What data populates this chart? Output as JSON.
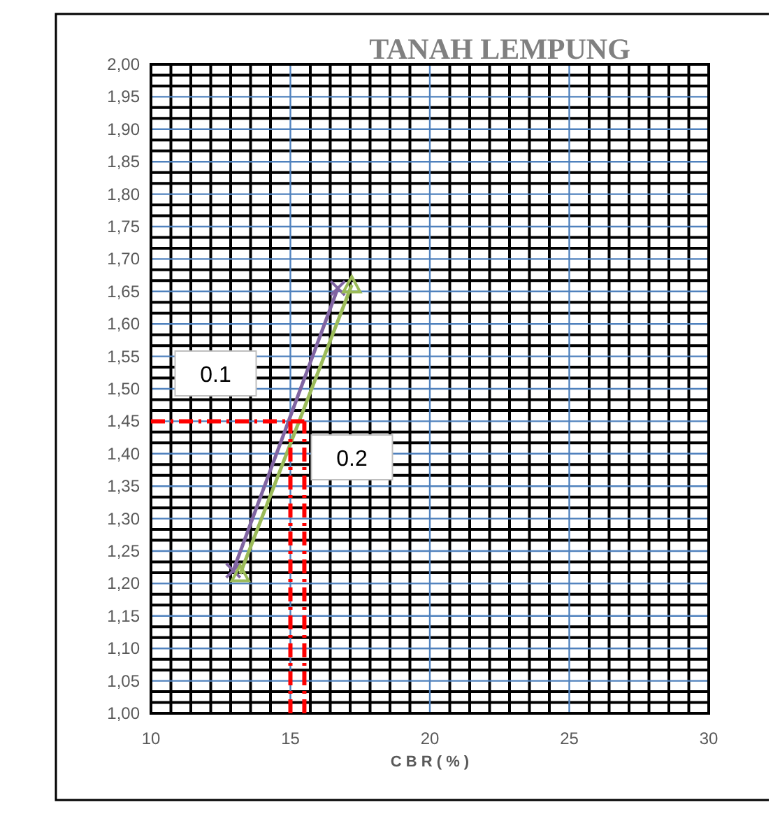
{
  "chart_data": {
    "type": "line",
    "title": "TANAH LEMPUNG",
    "xlabel": "C B R ( % )",
    "xlim": [
      10,
      30
    ],
    "xticks": [
      10,
      15,
      20,
      25,
      30
    ],
    "ylim": [
      1.0,
      2.0
    ],
    "yticks": [
      {
        "value": 1.0,
        "label": "1,00"
      },
      {
        "value": 1.05,
        "label": "1,05"
      },
      {
        "value": 1.1,
        "label": "1,10"
      },
      {
        "value": 1.15,
        "label": "1,15"
      },
      {
        "value": 1.2,
        "label": "1,20"
      },
      {
        "value": 1.25,
        "label": "1,25"
      },
      {
        "value": 1.3,
        "label": "1,30"
      },
      {
        "value": 1.35,
        "label": "1,35"
      },
      {
        "value": 1.4,
        "label": "1,40"
      },
      {
        "value": 1.45,
        "label": "1,45"
      },
      {
        "value": 1.5,
        "label": "1,50"
      },
      {
        "value": 1.55,
        "label": "1,55"
      },
      {
        "value": 1.6,
        "label": "1,60"
      },
      {
        "value": 1.65,
        "label": "1,65"
      },
      {
        "value": 1.7,
        "label": "1,70"
      },
      {
        "value": 1.75,
        "label": "1,75"
      },
      {
        "value": 1.8,
        "label": "1,80"
      },
      {
        "value": 1.85,
        "label": "1,85"
      },
      {
        "value": 1.9,
        "label": "1,90"
      },
      {
        "value": 1.95,
        "label": "1,95"
      },
      {
        "value": 2.0,
        "label": "2,00"
      }
    ],
    "grid": true,
    "series": [
      {
        "name": "0.1",
        "color": "#8064a2",
        "marker": "cross",
        "x": [
          12.95,
          16.7
        ],
        "values": [
          1.22,
          1.655
        ]
      },
      {
        "name": "0.2",
        "color": "#9bbb59",
        "marker": "triangle",
        "x": [
          13.2,
          17.2
        ],
        "values": [
          1.215,
          1.66
        ]
      }
    ],
    "ref_lines": [
      {
        "axis": "y",
        "value": 1.45,
        "color": "#ff0000",
        "line_style": "dashdot"
      },
      {
        "axis": "x",
        "value": 15,
        "color": "#ff0000",
        "line_style": "dashdot"
      },
      {
        "axis": "x",
        "value": 15.5,
        "color": "#ff0000",
        "line_style": "dashdot"
      }
    ]
  }
}
